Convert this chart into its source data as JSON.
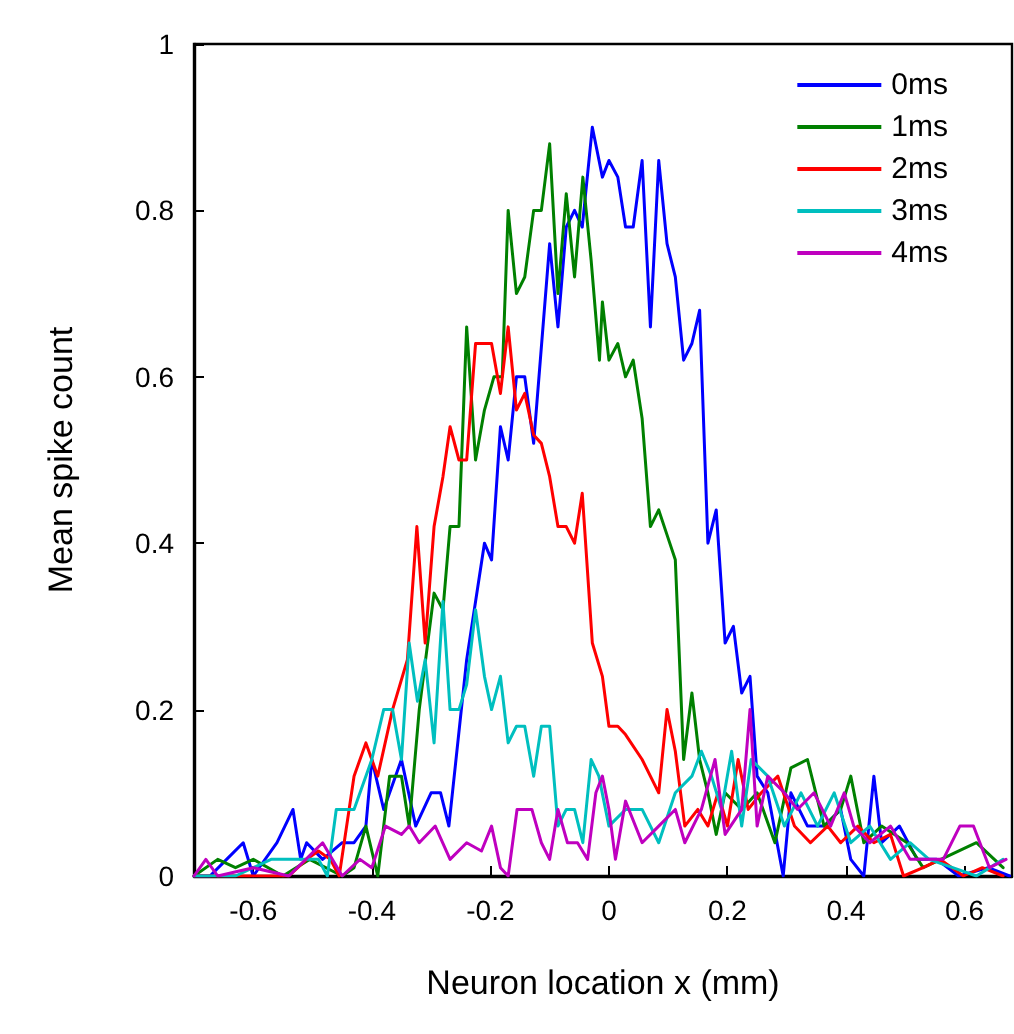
{
  "chart_data": {
    "type": "line",
    "xlabel": "Neuron location x (mm)",
    "ylabel": "Mean spike count",
    "xlim": [
      -0.7,
      0.68
    ],
    "xticks": [
      -0.6,
      -0.4,
      -0.2,
      0,
      0.2,
      0.4,
      0.6
    ],
    "ylim": [
      0,
      1
    ],
    "yticks": [
      0,
      0.2,
      0.4,
      0.6,
      0.8,
      1.0
    ],
    "grid": false,
    "legend": "top right",
    "marker": "none",
    "line_style": "solid",
    "series": [
      {
        "name": "0ms",
        "color": "#0000ff",
        "x": [
          -0.7,
          -0.673,
          -0.645,
          -0.617,
          -0.6,
          -0.56,
          -0.533,
          -0.52,
          -0.51,
          -0.483,
          -0.45,
          -0.43,
          -0.41,
          -0.4,
          -0.38,
          -0.35,
          -0.326,
          -0.3,
          -0.284,
          -0.27,
          -0.24,
          -0.21,
          -0.198,
          -0.183,
          -0.17,
          -0.156,
          -0.142,
          -0.127,
          -0.1,
          -0.086,
          -0.072,
          -0.058,
          -0.045,
          -0.028,
          -0.011,
          0,
          0.015,
          0.028,
          0.041,
          0.056,
          0.07,
          0.084,
          0.098,
          0.112,
          0.126,
          0.14,
          0.153,
          0.167,
          0.181,
          0.196,
          0.21,
          0.224,
          0.238,
          0.25,
          0.268,
          0.294,
          0.307,
          0.335,
          0.363,
          0.391,
          0.408,
          0.43,
          0.447,
          0.46,
          0.49,
          0.52,
          0.553,
          0.59,
          0.64,
          0.676
        ],
        "values": [
          0,
          0,
          0.02,
          0.04,
          0,
          0.04,
          0.08,
          0.02,
          0.04,
          0.02,
          0.04,
          0.04,
          0.06,
          0.14,
          0.08,
          0.14,
          0.06,
          0.1,
          0.1,
          0.06,
          0.26,
          0.4,
          0.38,
          0.54,
          0.5,
          0.6,
          0.6,
          0.52,
          0.76,
          0.66,
          0.78,
          0.8,
          0.78,
          0.9,
          0.84,
          0.86,
          0.84,
          0.78,
          0.78,
          0.86,
          0.66,
          0.86,
          0.76,
          0.72,
          0.62,
          0.64,
          0.68,
          0.4,
          0.44,
          0.28,
          0.3,
          0.22,
          0.24,
          0.12,
          0.1,
          0,
          0.1,
          0.06,
          0.06,
          0.08,
          0.02,
          0,
          0.12,
          0.04,
          0.06,
          0.02,
          0.02,
          0,
          0.01,
          0
        ]
      },
      {
        "name": "1ms",
        "color": "#008000",
        "x": [
          -0.7,
          -0.66,
          -0.63,
          -0.6,
          -0.55,
          -0.505,
          -0.45,
          -0.43,
          -0.41,
          -0.39,
          -0.37,
          -0.35,
          -0.337,
          -0.32,
          -0.295,
          -0.28,
          -0.268,
          -0.253,
          -0.24,
          -0.225,
          -0.21,
          -0.194,
          -0.18,
          -0.17,
          -0.156,
          -0.142,
          -0.127,
          -0.114,
          -0.1,
          -0.086,
          -0.072,
          -0.058,
          -0.044,
          -0.03,
          -0.016,
          -0.011,
          0,
          0.015,
          0.028,
          0.041,
          0.056,
          0.07,
          0.084,
          0.098,
          0.112,
          0.126,
          0.14,
          0.153,
          0.167,
          0.181,
          0.196,
          0.224,
          0.25,
          0.28,
          0.307,
          0.335,
          0.363,
          0.391,
          0.408,
          0.43,
          0.46,
          0.503,
          0.53,
          0.56,
          0.62,
          0.665
        ],
        "values": [
          0,
          0.02,
          0.01,
          0.02,
          0,
          0.02,
          0,
          0.01,
          0.06,
          0,
          0.12,
          0.12,
          0.06,
          0.2,
          0.34,
          0.32,
          0.42,
          0.42,
          0.66,
          0.5,
          0.56,
          0.6,
          0.6,
          0.8,
          0.7,
          0.72,
          0.8,
          0.8,
          0.88,
          0.7,
          0.82,
          0.72,
          0.84,
          0.74,
          0.62,
          0.69,
          0.62,
          0.64,
          0.6,
          0.62,
          0.55,
          0.42,
          0.44,
          0.41,
          0.38,
          0.14,
          0.22,
          0.14,
          0.1,
          0.05,
          0.1,
          0.08,
          0.1,
          0.04,
          0.13,
          0.14,
          0.06,
          0.08,
          0.12,
          0.04,
          0.06,
          0.04,
          0.01,
          0.02,
          0.04,
          0.01
        ]
      },
      {
        "name": "2ms",
        "color": "#ff0000",
        "x": [
          -0.7,
          -0.65,
          -0.6,
          -0.54,
          -0.51,
          -0.49,
          -0.47,
          -0.455,
          -0.43,
          -0.41,
          -0.39,
          -0.365,
          -0.34,
          -0.324,
          -0.31,
          -0.295,
          -0.28,
          -0.268,
          -0.253,
          -0.24,
          -0.225,
          -0.198,
          -0.183,
          -0.17,
          -0.156,
          -0.142,
          -0.127,
          -0.114,
          -0.1,
          -0.086,
          -0.072,
          -0.058,
          -0.045,
          -0.028,
          -0.011,
          0,
          0.015,
          0.028,
          0.056,
          0.084,
          0.098,
          0.112,
          0.128,
          0.15,
          0.167,
          0.184,
          0.2,
          0.218,
          0.235,
          0.257,
          0.285,
          0.313,
          0.34,
          0.369,
          0.391,
          0.42,
          0.447,
          0.475,
          0.497,
          0.53,
          0.559,
          0.598,
          0.63,
          0.665
        ],
        "values": [
          0,
          0,
          0,
          0,
          0.02,
          0.03,
          0.02,
          0,
          0.12,
          0.16,
          0.12,
          0.2,
          0.26,
          0.42,
          0.28,
          0.42,
          0.48,
          0.54,
          0.5,
          0.5,
          0.64,
          0.64,
          0.58,
          0.66,
          0.56,
          0.58,
          0.53,
          0.52,
          0.48,
          0.42,
          0.42,
          0.4,
          0.46,
          0.28,
          0.24,
          0.18,
          0.18,
          0.17,
          0.14,
          0.1,
          0.2,
          0.15,
          0.06,
          0.08,
          0.06,
          0.1,
          0.06,
          0.14,
          0.08,
          0.1,
          0.12,
          0.06,
          0.04,
          0.06,
          0.04,
          0.06,
          0.04,
          0.05,
          0,
          0.01,
          0.02,
          0,
          0.01,
          0
        ]
      },
      {
        "name": "3ms",
        "color": "#00bfbf",
        "x": [
          -0.7,
          -0.63,
          -0.57,
          -0.533,
          -0.49,
          -0.475,
          -0.46,
          -0.43,
          -0.4,
          -0.38,
          -0.365,
          -0.35,
          -0.337,
          -0.323,
          -0.31,
          -0.295,
          -0.28,
          -0.268,
          -0.253,
          -0.24,
          -0.225,
          -0.21,
          -0.198,
          -0.183,
          -0.17,
          -0.156,
          -0.142,
          -0.127,
          -0.114,
          -0.1,
          -0.086,
          -0.072,
          -0.058,
          -0.044,
          -0.03,
          -0.017,
          0,
          0.028,
          0.056,
          0.084,
          0.112,
          0.14,
          0.156,
          0.173,
          0.19,
          0.207,
          0.224,
          0.24,
          0.268,
          0.296,
          0.324,
          0.352,
          0.38,
          0.408,
          0.44,
          0.475,
          0.508,
          0.54,
          0.58,
          0.62,
          0.665
        ],
        "values": [
          0,
          0,
          0.02,
          0.02,
          0.02,
          0,
          0.08,
          0.08,
          0.14,
          0.2,
          0.2,
          0.14,
          0.28,
          0.21,
          0.26,
          0.16,
          0.33,
          0.2,
          0.2,
          0.23,
          0.32,
          0.24,
          0.2,
          0.24,
          0.16,
          0.18,
          0.18,
          0.12,
          0.18,
          0.18,
          0.06,
          0.08,
          0.08,
          0.04,
          0.14,
          0.12,
          0.06,
          0.08,
          0.08,
          0.04,
          0.1,
          0.12,
          0.15,
          0.12,
          0.08,
          0.15,
          0.06,
          0.14,
          0.12,
          0.06,
          0.1,
          0.06,
          0.1,
          0.04,
          0.06,
          0.02,
          0.04,
          0.02,
          0.01,
          0,
          0.02
        ]
      },
      {
        "name": "4ms",
        "color": "#bf00bf",
        "x": [
          -0.7,
          -0.68,
          -0.66,
          -0.6,
          -0.54,
          -0.483,
          -0.45,
          -0.42,
          -0.4,
          -0.377,
          -0.35,
          -0.337,
          -0.32,
          -0.293,
          -0.268,
          -0.24,
          -0.215,
          -0.198,
          -0.183,
          -0.17,
          -0.155,
          -0.13,
          -0.114,
          -0.1,
          -0.086,
          -0.07,
          -0.053,
          -0.036,
          -0.022,
          -0.011,
          0,
          0.011,
          0.028,
          0.056,
          0.084,
          0.112,
          0.128,
          0.156,
          0.179,
          0.196,
          0.224,
          0.238,
          0.25,
          0.268,
          0.296,
          0.318,
          0.346,
          0.374,
          0.397,
          0.413,
          0.44,
          0.475,
          0.508,
          0.536,
          0.564,
          0.592,
          0.615,
          0.642,
          0.67
        ],
        "values": [
          0,
          0.02,
          0,
          0.01,
          0,
          0.04,
          0,
          0.02,
          0.01,
          0.06,
          0.05,
          0.06,
          0.04,
          0.06,
          0.02,
          0.04,
          0.03,
          0.06,
          0.01,
          0,
          0.08,
          0.08,
          0.04,
          0.02,
          0.08,
          0.04,
          0.04,
          0.02,
          0.1,
          0.12,
          0.08,
          0.02,
          0.09,
          0.04,
          0.06,
          0.08,
          0.04,
          0.08,
          0.14,
          0.05,
          0.08,
          0.2,
          0.06,
          0.12,
          0.1,
          0.08,
          0.1,
          0.06,
          0.1,
          0.06,
          0.04,
          0.06,
          0.02,
          0.02,
          0.02,
          0.06,
          0.06,
          0.01,
          0.02
        ]
      }
    ]
  }
}
